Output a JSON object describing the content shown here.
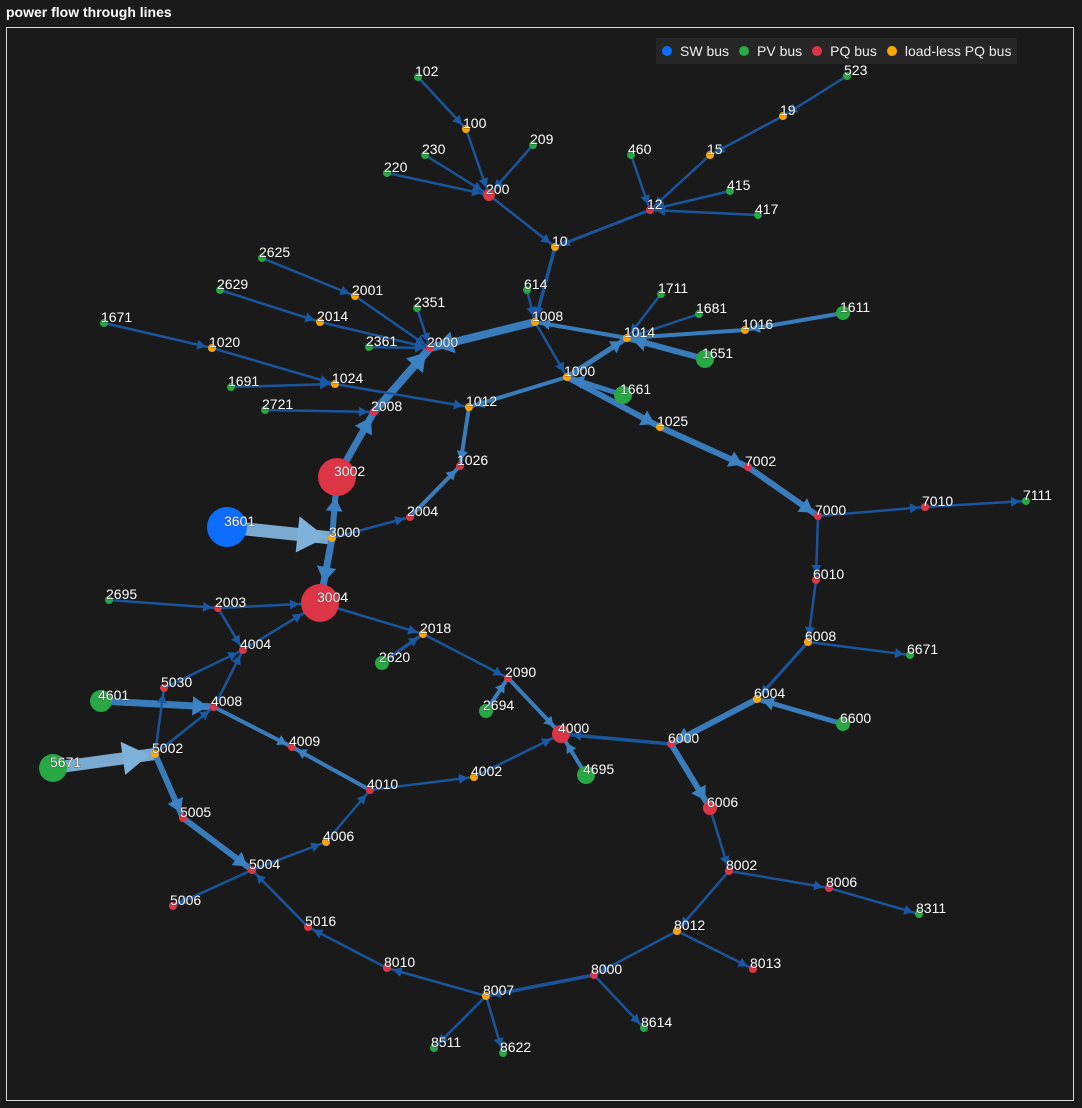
{
  "title": "power flow through lines",
  "colors": {
    "SW": "#0d6efd",
    "PV": "#28a745",
    "PQ": "#dc3545",
    "LL": "#ffa500",
    "line_thin": "#1a58a3",
    "line_thick": "#3b82c4",
    "line_heavy": "#7fb2da"
  },
  "legend": [
    {
      "type": "SW",
      "label": "SW bus"
    },
    {
      "type": "PV",
      "label": "PV bus"
    },
    {
      "type": "PQ",
      "label": "PQ bus"
    },
    {
      "type": "LL",
      "label": "load-less PQ bus"
    }
  ],
  "nodes": [
    {
      "id": "102",
      "type": "PV"
    },
    {
      "id": "100",
      "type": "LL"
    },
    {
      "id": "209",
      "type": "PV"
    },
    {
      "id": "230",
      "type": "PV"
    },
    {
      "id": "220",
      "type": "PV"
    },
    {
      "id": "200",
      "type": "PQ"
    },
    {
      "id": "10",
      "type": "LL"
    },
    {
      "id": "523",
      "type": "PV"
    },
    {
      "id": "19",
      "type": "LL"
    },
    {
      "id": "15",
      "type": "LL"
    },
    {
      "id": "460",
      "type": "PV"
    },
    {
      "id": "12",
      "type": "PQ"
    },
    {
      "id": "415",
      "type": "PV"
    },
    {
      "id": "417",
      "type": "PV"
    },
    {
      "id": "614",
      "type": "PV"
    },
    {
      "id": "1008",
      "type": "LL"
    },
    {
      "id": "1711",
      "type": "PV"
    },
    {
      "id": "1681",
      "type": "PV"
    },
    {
      "id": "1014",
      "type": "LL"
    },
    {
      "id": "1016",
      "type": "LL"
    },
    {
      "id": "1611",
      "type": "PV"
    },
    {
      "id": "1651",
      "type": "PV"
    },
    {
      "id": "1000",
      "type": "LL"
    },
    {
      "id": "1661",
      "type": "PV"
    },
    {
      "id": "1025",
      "type": "LL"
    },
    {
      "id": "7002",
      "type": "PQ"
    },
    {
      "id": "7000",
      "type": "PQ"
    },
    {
      "id": "7010",
      "type": "PQ"
    },
    {
      "id": "7111",
      "type": "PV"
    },
    {
      "id": "6010",
      "type": "PQ"
    },
    {
      "id": "6008",
      "type": "LL"
    },
    {
      "id": "6671",
      "type": "PV"
    },
    {
      "id": "6004",
      "type": "LL"
    },
    {
      "id": "6600",
      "type": "PV"
    },
    {
      "id": "6000",
      "type": "PQ"
    },
    {
      "id": "6006",
      "type": "PQ"
    },
    {
      "id": "8002",
      "type": "PQ"
    },
    {
      "id": "8006",
      "type": "PQ"
    },
    {
      "id": "8311",
      "type": "PV"
    },
    {
      "id": "8012",
      "type": "LL"
    },
    {
      "id": "8013",
      "type": "PQ"
    },
    {
      "id": "8000",
      "type": "PQ"
    },
    {
      "id": "8614",
      "type": "PV"
    },
    {
      "id": "8007",
      "type": "LL"
    },
    {
      "id": "8511",
      "type": "PV"
    },
    {
      "id": "8622",
      "type": "PV"
    },
    {
      "id": "8010",
      "type": "PQ"
    },
    {
      "id": "5016",
      "type": "PQ"
    },
    {
      "id": "5004",
      "type": "PQ"
    },
    {
      "id": "5006",
      "type": "PQ"
    },
    {
      "id": "4006",
      "type": "LL"
    },
    {
      "id": "4010",
      "type": "PQ"
    },
    {
      "id": "4002",
      "type": "LL"
    },
    {
      "id": "4000",
      "type": "PQ"
    },
    {
      "id": "4695",
      "type": "PV"
    },
    {
      "id": "2694",
      "type": "PV"
    },
    {
      "id": "2090",
      "type": "PQ"
    },
    {
      "id": "2018",
      "type": "LL"
    },
    {
      "id": "2620",
      "type": "PV"
    },
    {
      "id": "3004",
      "type": "PQ"
    },
    {
      "id": "2003",
      "type": "PQ"
    },
    {
      "id": "2695",
      "type": "PV"
    },
    {
      "id": "4004",
      "type": "PQ"
    },
    {
      "id": "5030",
      "type": "PQ"
    },
    {
      "id": "4601",
      "type": "PV"
    },
    {
      "id": "4008",
      "type": "PQ"
    },
    {
      "id": "4009",
      "type": "PQ"
    },
    {
      "id": "5002",
      "type": "LL"
    },
    {
      "id": "5671",
      "type": "PV"
    },
    {
      "id": "5005",
      "type": "PQ"
    },
    {
      "id": "3601",
      "type": "SW"
    },
    {
      "id": "3000",
      "type": "LL"
    },
    {
      "id": "3002",
      "type": "PQ"
    },
    {
      "id": "2004",
      "type": "PQ"
    },
    {
      "id": "1026",
      "type": "PQ"
    },
    {
      "id": "1012",
      "type": "LL"
    },
    {
      "id": "2008",
      "type": "PQ"
    },
    {
      "id": "2000",
      "type": "PQ"
    },
    {
      "id": "2721",
      "type": "PV"
    },
    {
      "id": "1691",
      "type": "PV"
    },
    {
      "id": "1024",
      "type": "LL"
    },
    {
      "id": "1020",
      "type": "LL"
    },
    {
      "id": "1671",
      "type": "PV"
    },
    {
      "id": "2361",
      "type": "PV"
    },
    {
      "id": "2351",
      "type": "PV"
    },
    {
      "id": "2014",
      "type": "LL"
    },
    {
      "id": "2629",
      "type": "PV"
    },
    {
      "id": "2001",
      "type": "LL"
    },
    {
      "id": "2625",
      "type": "PV"
    }
  ],
  "edges": [
    [
      "102",
      "100"
    ],
    [
      "100",
      "200"
    ],
    [
      "209",
      "200"
    ],
    [
      "230",
      "200"
    ],
    [
      "220",
      "200"
    ],
    [
      "200",
      "10"
    ],
    [
      "10",
      "1008"
    ],
    [
      "523",
      "19"
    ],
    [
      "19",
      "15"
    ],
    [
      "15",
      "12"
    ],
    [
      "460",
      "12"
    ],
    [
      "415",
      "12"
    ],
    [
      "417",
      "12"
    ],
    [
      "12",
      "10"
    ],
    [
      "614",
      "1008"
    ],
    [
      "1008",
      "2000"
    ],
    [
      "1014",
      "1008"
    ],
    [
      "1008",
      "1000"
    ],
    [
      "1711",
      "1014"
    ],
    [
      "1681",
      "1014"
    ],
    [
      "1016",
      "1014"
    ],
    [
      "1611",
      "1016"
    ],
    [
      "1651",
      "1014"
    ],
    [
      "1000",
      "1014"
    ],
    [
      "1661",
      "1000"
    ],
    [
      "1000",
      "1025"
    ],
    [
      "1000",
      "1012"
    ],
    [
      "1025",
      "7002"
    ],
    [
      "7002",
      "7000"
    ],
    [
      "7000",
      "7010"
    ],
    [
      "7010",
      "7111"
    ],
    [
      "7000",
      "6010"
    ],
    [
      "6010",
      "6008"
    ],
    [
      "6008",
      "6671"
    ],
    [
      "6008",
      "6004"
    ],
    [
      "6600",
      "6004"
    ],
    [
      "6004",
      "6000"
    ],
    [
      "6000",
      "4000"
    ],
    [
      "6000",
      "6006"
    ],
    [
      "6006",
      "8002"
    ],
    [
      "8002",
      "8006"
    ],
    [
      "8006",
      "8311"
    ],
    [
      "8002",
      "8012"
    ],
    [
      "8012",
      "8000"
    ],
    [
      "8012",
      "8013"
    ],
    [
      "8000",
      "8614"
    ],
    [
      "8000",
      "8007"
    ],
    [
      "8007",
      "8511"
    ],
    [
      "8007",
      "8622"
    ],
    [
      "8007",
      "8010"
    ],
    [
      "8010",
      "5016"
    ],
    [
      "5016",
      "5004"
    ],
    [
      "5004",
      "5006"
    ],
    [
      "5004",
      "4006"
    ],
    [
      "4006",
      "4010"
    ],
    [
      "4010",
      "4009"
    ],
    [
      "4010",
      "4002"
    ],
    [
      "4002",
      "4000"
    ],
    [
      "4695",
      "4000"
    ],
    [
      "2090",
      "4000"
    ],
    [
      "2694",
      "2090"
    ],
    [
      "2018",
      "2090"
    ],
    [
      "2620",
      "2018"
    ],
    [
      "3004",
      "2018"
    ],
    [
      "2003",
      "3004"
    ],
    [
      "2695",
      "2003"
    ],
    [
      "2003",
      "4004"
    ],
    [
      "4004",
      "3004"
    ],
    [
      "5030",
      "4004"
    ],
    [
      "4008",
      "4004"
    ],
    [
      "4601",
      "4008"
    ],
    [
      "4008",
      "4009"
    ],
    [
      "5002",
      "4008"
    ],
    [
      "5002",
      "5030"
    ],
    [
      "5671",
      "5002"
    ],
    [
      "5002",
      "5005"
    ],
    [
      "5005",
      "5004"
    ],
    [
      "3601",
      "3000"
    ],
    [
      "3000",
      "3004"
    ],
    [
      "3000",
      "3002"
    ],
    [
      "3002",
      "2008"
    ],
    [
      "2008",
      "2000"
    ],
    [
      "3000",
      "2004"
    ],
    [
      "2004",
      "1026"
    ],
    [
      "1012",
      "1026"
    ],
    [
      "1020",
      "1024"
    ],
    [
      "1024",
      "1012"
    ],
    [
      "1691",
      "1024"
    ],
    [
      "2721",
      "2008"
    ],
    [
      "2361",
      "2000"
    ],
    [
      "2351",
      "2000"
    ],
    [
      "2014",
      "2000"
    ],
    [
      "2629",
      "2014"
    ],
    [
      "2625",
      "2001"
    ],
    [
      "2001",
      "2000"
    ],
    [
      "1671",
      "1020"
    ]
  ]
}
